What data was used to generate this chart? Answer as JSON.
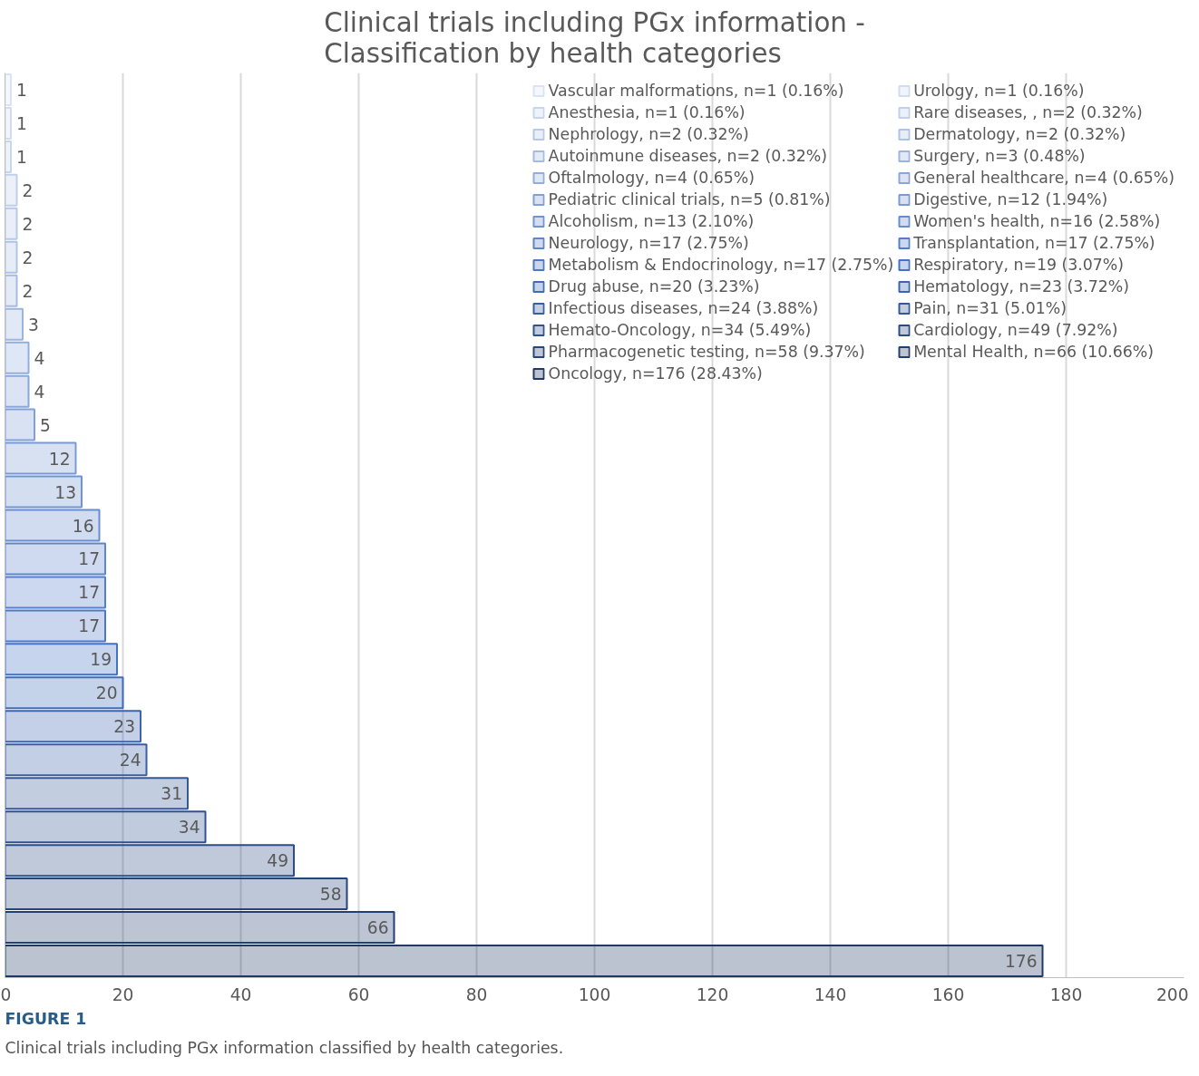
{
  "chart_data": {
    "type": "bar",
    "orientation": "horizontal",
    "title": "Clinical trials including PGx information -\nClassification by health categories",
    "categories": [
      null,
      null,
      null,
      null,
      null,
      null,
      null,
      null,
      null,
      null,
      null,
      null,
      null,
      null,
      null,
      null,
      null,
      null,
      null,
      null,
      null,
      null,
      null,
      null,
      null,
      null,
      null
    ],
    "series": [
      {
        "name": "Vascular malformations, n=1 (0.16%)",
        "color": "#dae3f3",
        "values": [
          1,
          null,
          null,
          null,
          null,
          null,
          null,
          null,
          null,
          null,
          null,
          null,
          null,
          null,
          null,
          null,
          null,
          null,
          null,
          null,
          null,
          null,
          null,
          null,
          null,
          null,
          null
        ]
      },
      {
        "name": "Urology, n=1 (0.16%)",
        "color": "#d1dcf0",
        "values": [
          null,
          1,
          null,
          null,
          null,
          null,
          null,
          null,
          null,
          null,
          null,
          null,
          null,
          null,
          null,
          null,
          null,
          null,
          null,
          null,
          null,
          null,
          null,
          null,
          null,
          null,
          null
        ]
      },
      {
        "name": "Anesthesia, n=1 (0.16%)",
        "color": "#c8d6ed",
        "values": [
          null,
          null,
          1,
          null,
          null,
          null,
          null,
          null,
          null,
          null,
          null,
          null,
          null,
          null,
          null,
          null,
          null,
          null,
          null,
          null,
          null,
          null,
          null,
          null,
          null,
          null,
          null
        ]
      },
      {
        "name": "Rare diseases, , n=2 (0.32%)",
        "color": "#c0cfeb",
        "values": [
          null,
          null,
          null,
          2,
          null,
          null,
          null,
          null,
          null,
          null,
          null,
          null,
          null,
          null,
          null,
          null,
          null,
          null,
          null,
          null,
          null,
          null,
          null,
          null,
          null,
          null,
          null
        ]
      },
      {
        "name": "Nephrology, n=2 (0.32%)",
        "color": "#b7c8e8",
        "values": [
          null,
          null,
          null,
          null,
          2,
          null,
          null,
          null,
          null,
          null,
          null,
          null,
          null,
          null,
          null,
          null,
          null,
          null,
          null,
          null,
          null,
          null,
          null,
          null,
          null,
          null,
          null
        ]
      },
      {
        "name": "Dermatology, n=2 (0.32%)",
        "color": "#aec2e5",
        "values": [
          null,
          null,
          null,
          null,
          null,
          2,
          null,
          null,
          null,
          null,
          null,
          null,
          null,
          null,
          null,
          null,
          null,
          null,
          null,
          null,
          null,
          null,
          null,
          null,
          null,
          null,
          null
        ]
      },
      {
        "name": "Autoinmune diseases, n=2 (0.32%)",
        "color": "#a5bbe2",
        "values": [
          null,
          null,
          null,
          null,
          null,
          null,
          2,
          null,
          null,
          null,
          null,
          null,
          null,
          null,
          null,
          null,
          null,
          null,
          null,
          null,
          null,
          null,
          null,
          null,
          null,
          null,
          null
        ]
      },
      {
        "name": "Surgery, n=3 (0.48%)",
        "color": "#9cb4e0",
        "values": [
          null,
          null,
          null,
          null,
          null,
          null,
          null,
          3,
          null,
          null,
          null,
          null,
          null,
          null,
          null,
          null,
          null,
          null,
          null,
          null,
          null,
          null,
          null,
          null,
          null,
          null,
          null
        ]
      },
      {
        "name": "Oftalmology, n=4 (0.65%)",
        "color": "#93aedd",
        "values": [
          null,
          null,
          null,
          null,
          null,
          null,
          null,
          null,
          4,
          null,
          null,
          null,
          null,
          null,
          null,
          null,
          null,
          null,
          null,
          null,
          null,
          null,
          null,
          null,
          null,
          null,
          null
        ]
      },
      {
        "name": "General healthcare, n=4 (0.65%)",
        "color": "#8ba7da",
        "values": [
          null,
          null,
          null,
          null,
          null,
          null,
          null,
          null,
          null,
          4,
          null,
          null,
          null,
          null,
          null,
          null,
          null,
          null,
          null,
          null,
          null,
          null,
          null,
          null,
          null,
          null,
          null
        ]
      },
      {
        "name": "Pediatric clinical trials, n=5 (0.81%)",
        "color": "#82a0d7",
        "values": [
          null,
          null,
          null,
          null,
          null,
          null,
          null,
          null,
          null,
          null,
          5,
          null,
          null,
          null,
          null,
          null,
          null,
          null,
          null,
          null,
          null,
          null,
          null,
          null,
          null,
          null,
          null
        ]
      },
      {
        "name": "Digestive, n=12 (1.94%)",
        "color": "#799ad5",
        "values": [
          null,
          null,
          null,
          null,
          null,
          null,
          null,
          null,
          null,
          null,
          null,
          12,
          null,
          null,
          null,
          null,
          null,
          null,
          null,
          null,
          null,
          null,
          null,
          null,
          null,
          null,
          null
        ]
      },
      {
        "name": "Alcoholism, n=13 (2.10%)",
        "color": "#7093d2",
        "values": [
          null,
          null,
          null,
          null,
          null,
          null,
          null,
          null,
          null,
          null,
          null,
          null,
          13,
          null,
          null,
          null,
          null,
          null,
          null,
          null,
          null,
          null,
          null,
          null,
          null,
          null,
          null
        ]
      },
      {
        "name": "Women's health, n=16 (2.58%)",
        "color": "#678ccf",
        "values": [
          null,
          null,
          null,
          null,
          null,
          null,
          null,
          null,
          null,
          null,
          null,
          null,
          null,
          16,
          null,
          null,
          null,
          null,
          null,
          null,
          null,
          null,
          null,
          null,
          null,
          null,
          null
        ]
      },
      {
        "name": "Neurology, n=17 (2.75%)",
        "color": "#5f86cc",
        "values": [
          null,
          null,
          null,
          null,
          null,
          null,
          null,
          null,
          null,
          null,
          null,
          null,
          null,
          null,
          17,
          null,
          null,
          null,
          null,
          null,
          null,
          null,
          null,
          null,
          null,
          null,
          null
        ]
      },
      {
        "name": "Transplantation, n=17 (2.75%)",
        "color": "#567fca",
        "values": [
          null,
          null,
          null,
          null,
          null,
          null,
          null,
          null,
          null,
          null,
          null,
          null,
          null,
          null,
          null,
          17,
          null,
          null,
          null,
          null,
          null,
          null,
          null,
          null,
          null,
          null,
          null
        ]
      },
      {
        "name": "Metabolism & Endocrinology, n=17 (2.75%)",
        "color": "#4d78c7",
        "values": [
          null,
          null,
          null,
          null,
          null,
          null,
          null,
          null,
          null,
          null,
          null,
          null,
          null,
          null,
          null,
          null,
          17,
          null,
          null,
          null,
          null,
          null,
          null,
          null,
          null,
          null,
          null
        ]
      },
      {
        "name": "Respiratory, n=19 (3.07%)",
        "color": "#4472c4",
        "values": [
          null,
          null,
          null,
          null,
          null,
          null,
          null,
          null,
          null,
          null,
          null,
          null,
          null,
          null,
          null,
          null,
          null,
          19,
          null,
          null,
          null,
          null,
          null,
          null,
          null,
          null,
          null
        ]
      },
      {
        "name": "Drug abuse, n=20 (3.23%)",
        "color": "#406cb9",
        "values": [
          null,
          null,
          null,
          null,
          null,
          null,
          null,
          null,
          null,
          null,
          null,
          null,
          null,
          null,
          null,
          null,
          null,
          null,
          20,
          null,
          null,
          null,
          null,
          null,
          null,
          null,
          null
        ]
      },
      {
        "name": "Hematology, n=23 (3.72%)",
        "color": "#3c65af",
        "values": [
          null,
          null,
          null,
          null,
          null,
          null,
          null,
          null,
          null,
          null,
          null,
          null,
          null,
          null,
          null,
          null,
          null,
          null,
          null,
          23,
          null,
          null,
          null,
          null,
          null,
          null,
          null
        ]
      },
      {
        "name": "Infectious diseases, n=24 (3.88%)",
        "color": "#385fa4",
        "values": [
          null,
          null,
          null,
          null,
          null,
          null,
          null,
          null,
          null,
          null,
          null,
          null,
          null,
          null,
          null,
          null,
          null,
          null,
          null,
          null,
          24,
          null,
          null,
          null,
          null,
          null,
          null
        ]
      },
      {
        "name": "Pain, n=31 (5.01%)",
        "color": "#345899",
        "values": [
          null,
          null,
          null,
          null,
          null,
          null,
          null,
          null,
          null,
          null,
          null,
          null,
          null,
          null,
          null,
          null,
          null,
          null,
          null,
          null,
          null,
          31,
          null,
          null,
          null,
          null,
          null
        ]
      },
      {
        "name": "Hemato-Oncology, n=34 (5.49%)",
        "color": "#30528f",
        "values": [
          null,
          null,
          null,
          null,
          null,
          null,
          null,
          null,
          null,
          null,
          null,
          null,
          null,
          null,
          null,
          null,
          null,
          null,
          null,
          null,
          null,
          null,
          34,
          null,
          null,
          null,
          null
        ]
      },
      {
        "name": "Cardiology, n=49 (7.92%)",
        "color": "#2b4c84",
        "values": [
          null,
          null,
          null,
          null,
          null,
          null,
          null,
          null,
          null,
          null,
          null,
          null,
          null,
          null,
          null,
          null,
          null,
          null,
          null,
          null,
          null,
          null,
          null,
          49,
          null,
          null,
          null
        ]
      },
      {
        "name": "Pharmacogenetic testing, n=58 (9.37%)",
        "color": "#274579",
        "values": [
          null,
          null,
          null,
          null,
          null,
          null,
          null,
          null,
          null,
          null,
          null,
          null,
          null,
          null,
          null,
          null,
          null,
          null,
          null,
          null,
          null,
          null,
          null,
          null,
          58,
          null,
          null
        ]
      },
      {
        "name": "Mental Health, n=66 (10.66%)",
        "color": "#233f6f",
        "values": [
          null,
          null,
          null,
          null,
          null,
          null,
          null,
          null,
          null,
          null,
          null,
          null,
          null,
          null,
          null,
          null,
          null,
          null,
          null,
          null,
          null,
          null,
          null,
          null,
          null,
          66,
          null
        ]
      },
      {
        "name": "Oncology, n=176 (28.43%)",
        "color": "#1f3864",
        "values": [
          null,
          null,
          null,
          null,
          null,
          null,
          null,
          null,
          null,
          null,
          null,
          null,
          null,
          null,
          null,
          null,
          null,
          null,
          null,
          null,
          null,
          null,
          null,
          null,
          null,
          null,
          176
        ]
      }
    ],
    "xlim": [
      0,
      200
    ],
    "xticks": [
      0,
      20,
      40,
      60,
      80,
      100,
      120,
      140,
      160,
      180,
      200
    ],
    "grid": "x",
    "legend": "top right",
    "tick_labels": "x",
    "data_labels": true,
    "annotations": [
      "FIGURE 1",
      "Clinical trials including PGx information classified by health categories."
    ]
  }
}
